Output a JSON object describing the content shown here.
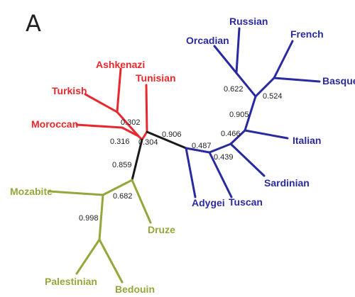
{
  "panel_label": "A",
  "colors": {
    "middle_east": "#93a83a",
    "red_group": "#e8282d",
    "europe": "#2a2aa0",
    "backbone": "#1a1a1a"
  },
  "taxa": {
    "ashkenazi": "Ashkenazi",
    "turkish": "Turkish",
    "tunisian": "Tunisian",
    "moroccan": "Moroccan",
    "russian": "Russian",
    "orcadian": "Orcadian",
    "french": "French",
    "basque": "Basque",
    "italian": "Italian",
    "sardinian": "Sardinian",
    "adygei": "Adygei",
    "tuscan": "Tuscan",
    "mozabite": "Mozabite",
    "druze": "Druze",
    "palestinian": "Palestinian",
    "bedouin": "Bedouin"
  },
  "support": {
    "n1": "0.302",
    "n2": "0.316",
    "n3": "0.304",
    "n4": "0.906",
    "n5": "0.859",
    "n6": "0.682",
    "n7": "0.998",
    "n8": "0.487",
    "n9": "0.439",
    "n10": "0.466",
    "n11": "0.905",
    "n12": "0.622",
    "n13": "0.524"
  }
}
